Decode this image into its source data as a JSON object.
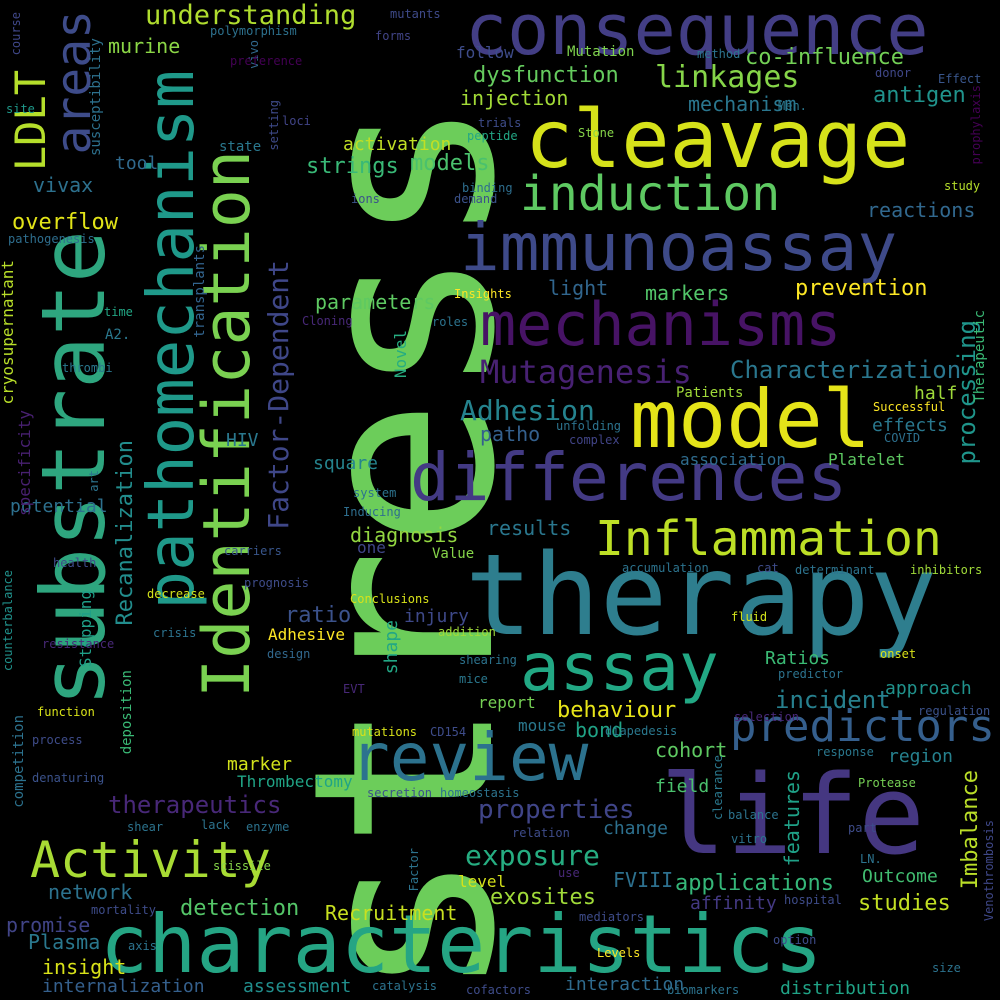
{
  "words": [
    {
      "t": "stress",
      "c": "#6ccd5a"
    },
    {
      "t": "therapy",
      "c": "#2e7e8e"
    },
    {
      "t": "characteristics",
      "c": "#25a584"
    },
    {
      "t": "life",
      "c": "#453781"
    },
    {
      "t": "consequence",
      "c": "#433e85"
    },
    {
      "t": "cleavage",
      "c": "#d6e21a"
    },
    {
      "t": "substrate",
      "c": "#2ea67f"
    },
    {
      "t": "pathomechanism",
      "c": "#1f998a"
    },
    {
      "t": "Identification",
      "c": "#7ad151"
    },
    {
      "t": "immunoassay",
      "c": "#3e4a89"
    },
    {
      "t": "mechanisms",
      "c": "#471365"
    },
    {
      "t": "model",
      "c": "#e5e419"
    },
    {
      "t": "differences",
      "c": "#433a84"
    },
    {
      "t": "review",
      "c": "#2c728e"
    },
    {
      "t": "assay",
      "c": "#22a884"
    },
    {
      "t": "induction",
      "c": "#5ec962"
    },
    {
      "t": "Inflammation",
      "c": "#bddf26"
    },
    {
      "t": "Activity",
      "c": "#a8db34"
    },
    {
      "t": "areas",
      "c": "#3e4c8a"
    },
    {
      "t": "predictors",
      "c": "#355f8d"
    },
    {
      "t": "LDLT",
      "c": "#b5de2b"
    },
    {
      "t": "Factor-Dependent",
      "c": "#3f4788"
    },
    {
      "t": "Mutagenesis",
      "c": "#482173"
    },
    {
      "t": "linkages",
      "c": "#86d549"
    },
    {
      "t": "understanding",
      "c": "#b0dd2f"
    },
    {
      "t": "processing",
      "c": "#1f958b"
    },
    {
      "t": "Recanalization",
      "c": "#228d8d"
    },
    {
      "t": "Imbalance",
      "c": "#bade28"
    },
    {
      "t": "features",
      "c": "#1fa187"
    },
    {
      "t": "Adhesion",
      "c": "#25838e"
    },
    {
      "t": "Characterization",
      "c": "#2a778e"
    },
    {
      "t": "exposure",
      "c": "#26ad81"
    },
    {
      "t": "properties",
      "c": "#404588"
    },
    {
      "t": "therapeutics",
      "c": "#482878"
    },
    {
      "t": "applications",
      "c": "#35b779"
    },
    {
      "t": "incident",
      "c": "#27808e"
    },
    {
      "t": "detection",
      "c": "#54c568"
    },
    {
      "t": "Recruitment",
      "c": "#c8e020"
    },
    {
      "t": "studies",
      "c": "#c2df23"
    },
    {
      "t": "exosites",
      "c": "#a0da39"
    },
    {
      "t": "prevention",
      "c": "#fde725"
    },
    {
      "t": "behaviour",
      "c": "#e7e419"
    },
    {
      "t": "dysfunction",
      "c": "#65cb5e"
    },
    {
      "t": "co-influence",
      "c": "#73d056"
    },
    {
      "t": "injection",
      "c": "#a2da37"
    },
    {
      "t": "mechanism",
      "c": "#2a768e"
    },
    {
      "t": "antigen",
      "c": "#20938c"
    },
    {
      "t": "murine",
      "c": "#8bd646"
    },
    {
      "t": "activation",
      "c": "#c0df25"
    },
    {
      "t": "strings",
      "c": "#39b977"
    },
    {
      "t": "models",
      "c": "#4ac16d"
    },
    {
      "t": "reactions",
      "c": "#31688e"
    },
    {
      "t": "overflow",
      "c": "#e2e418"
    },
    {
      "t": "vivax",
      "c": "#2d718e"
    },
    {
      "t": "tool",
      "c": "#306a8e"
    },
    {
      "t": "light",
      "c": "#31668e"
    },
    {
      "t": "markers",
      "c": "#52c569"
    },
    {
      "t": "parameters",
      "c": "#5ec962"
    },
    {
      "t": "ratio",
      "c": "#3b528b"
    },
    {
      "t": "half",
      "c": "#9fda3a"
    },
    {
      "t": "effects",
      "c": "#2a788e"
    },
    {
      "t": "patho",
      "c": "#34608d"
    },
    {
      "t": "Platelet",
      "c": "#5ec962"
    },
    {
      "t": "association",
      "c": "#2f6c8e"
    },
    {
      "t": "square",
      "c": "#25848e"
    },
    {
      "t": "diagnosis",
      "c": "#93d741"
    },
    {
      "t": "results",
      "c": "#2a778e"
    },
    {
      "t": "Ratios",
      "c": "#3bbb75"
    },
    {
      "t": "approach",
      "c": "#20928c"
    },
    {
      "t": "report",
      "c": "#75d054"
    },
    {
      "t": "bond",
      "c": "#20a386"
    },
    {
      "t": "cohort",
      "c": "#5ec962"
    },
    {
      "t": "marker",
      "c": "#d2e21b"
    },
    {
      "t": "Thrombectomy",
      "c": "#20a486"
    },
    {
      "t": "region",
      "c": "#26818e"
    },
    {
      "t": "field",
      "c": "#4ac16d"
    },
    {
      "t": "change",
      "c": "#2d708e"
    },
    {
      "t": "network",
      "c": "#2c728e"
    },
    {
      "t": "FVIII",
      "c": "#2d708e"
    },
    {
      "t": "Outcome",
      "c": "#42be71"
    },
    {
      "t": "affinity",
      "c": "#443983"
    },
    {
      "t": "promise",
      "c": "#414487"
    },
    {
      "t": "Plasma",
      "c": "#2a788e"
    },
    {
      "t": "insight",
      "c": "#d8e219"
    },
    {
      "t": "internalization",
      "c": "#35608d"
    },
    {
      "t": "assessment",
      "c": "#218f8d"
    },
    {
      "t": "interaction",
      "c": "#2f6b8e"
    },
    {
      "t": "distribution",
      "c": "#20a386"
    },
    {
      "t": "level",
      "c": "#d5e21a"
    },
    {
      "t": "injury",
      "c": "#3e4989"
    },
    {
      "t": "Adhesive",
      "c": "#fde725"
    },
    {
      "t": "shape",
      "c": "#22a785"
    },
    {
      "t": "mouse",
      "c": "#2a788e"
    },
    {
      "t": "one",
      "c": "#404688"
    },
    {
      "t": "potential",
      "c": "#2d708e"
    },
    {
      "t": "HIV",
      "c": "#2a788e"
    },
    {
      "t": "cryosupernatant",
      "c": "#b8de29"
    },
    {
      "t": "specificity",
      "c": "#482071"
    },
    {
      "t": "susceptibility",
      "c": "#2d718e"
    },
    {
      "t": "pathogenesis",
      "c": "#2e6e8e"
    },
    {
      "t": "transplants",
      "c": "#32648e"
    },
    {
      "t": "Novel",
      "c": "#26ad81"
    },
    {
      "t": "Therapeutic",
      "c": "#3aba76"
    },
    {
      "t": "competition",
      "c": "#2c728e"
    },
    {
      "t": "deposition",
      "c": "#3aba76"
    },
    {
      "t": "Stepping",
      "c": "#1f9f88"
    },
    {
      "t": "counterbalance",
      "c": "#20928c"
    },
    {
      "t": "Venothrombosis",
      "c": "#3f4889"
    },
    {
      "t": "mutants",
      "c": "#3e4a89"
    },
    {
      "t": "course",
      "c": "#3f4788"
    },
    {
      "t": "polymorphism",
      "c": "#2d718e"
    },
    {
      "t": "forms",
      "c": "#414487"
    },
    {
      "t": "follow",
      "c": "#3e4c8a"
    },
    {
      "t": "Mutation",
      "c": "#7fd34e"
    },
    {
      "t": "method",
      "c": "#2c738e"
    },
    {
      "t": "donor",
      "c": "#3f4788"
    },
    {
      "t": "Effect",
      "c": "#39568c"
    },
    {
      "t": "prophylaxis",
      "c": "#440154"
    },
    {
      "t": "Men.",
      "c": "#2a788e"
    },
    {
      "t": "site",
      "c": "#1f998a"
    },
    {
      "t": "vivo",
      "c": "#31688e"
    },
    {
      "t": "preference",
      "c": "#440154"
    },
    {
      "t": "setting",
      "c": "#3e4a89"
    },
    {
      "t": "loci",
      "c": "#414487"
    },
    {
      "t": "trials",
      "c": "#3e4c8a"
    },
    {
      "t": "peptide",
      "c": "#22a785"
    },
    {
      "t": "Stone",
      "c": "#86d549"
    },
    {
      "t": "state",
      "c": "#2a788e"
    },
    {
      "t": "study",
      "c": "#b5de2b"
    },
    {
      "t": "binding",
      "c": "#2e6e8e"
    },
    {
      "t": "demand",
      "c": "#3b528b"
    },
    {
      "t": "ions",
      "c": "#3b528b"
    },
    {
      "t": "Insights",
      "c": "#fde725"
    },
    {
      "t": "roles",
      "c": "#2c738e"
    },
    {
      "t": "Cloning",
      "c": "#482878"
    },
    {
      "t": "time",
      "c": "#22a785"
    },
    {
      "t": "A2.",
      "c": "#2a788e"
    },
    {
      "t": "thrombi",
      "c": "#2a788e"
    },
    {
      "t": "Patients",
      "c": "#a0da39"
    },
    {
      "t": "Successful",
      "c": "#fde725"
    },
    {
      "t": "unfolding",
      "c": "#2c738e"
    },
    {
      "t": "complex",
      "c": "#414487"
    },
    {
      "t": "COVID",
      "c": "#2d708e"
    },
    {
      "t": "art",
      "c": "#2c738e"
    },
    {
      "t": "system",
      "c": "#2c738e"
    },
    {
      "t": "Inducing",
      "c": "#2e6e8e"
    },
    {
      "t": "carriers",
      "c": "#39568c"
    },
    {
      "t": "Value",
      "c": "#86d549"
    },
    {
      "t": "health",
      "c": "#3e4c8a"
    },
    {
      "t": "accumulation",
      "c": "#2c738e"
    },
    {
      "t": "cat",
      "c": "#3e4c8a"
    },
    {
      "t": "determinant",
      "c": "#2c738e"
    },
    {
      "t": "inhibitors",
      "c": "#a0da39"
    },
    {
      "t": "prognosis",
      "c": "#3e4c8a"
    },
    {
      "t": "decrease",
      "c": "#d2e21b"
    },
    {
      "t": "Conclusions",
      "c": "#d8e219"
    },
    {
      "t": "resistance",
      "c": "#482878"
    },
    {
      "t": "crisis",
      "c": "#2c738e"
    },
    {
      "t": "addition",
      "c": "#a0da39"
    },
    {
      "t": "fluid",
      "c": "#d2e21b"
    },
    {
      "t": "design",
      "c": "#31688e"
    },
    {
      "t": "shearing",
      "c": "#2c738e"
    },
    {
      "t": "onset",
      "c": "#d8e219"
    },
    {
      "t": "mice",
      "c": "#2a788e"
    },
    {
      "t": "predictor",
      "c": "#2c738e"
    },
    {
      "t": "EVT",
      "c": "#482878"
    },
    {
      "t": "function",
      "c": "#d8e219"
    },
    {
      "t": "process",
      "c": "#3e4c8a"
    },
    {
      "t": "mutations",
      "c": "#d8e219"
    },
    {
      "t": "CD154",
      "c": "#3e4c8a"
    },
    {
      "t": "diapedesis",
      "c": "#2a788e"
    },
    {
      "t": "selection",
      "c": "#482878"
    },
    {
      "t": "regulation",
      "c": "#3b528b"
    },
    {
      "t": "clearance",
      "c": "#2a788e"
    },
    {
      "t": "response",
      "c": "#2a788e"
    },
    {
      "t": "denaturing",
      "c": "#3b528b"
    },
    {
      "t": "secretion",
      "c": "#3b528b"
    },
    {
      "t": "homeostasis",
      "c": "#2c738e"
    },
    {
      "t": "Protease",
      "c": "#75d054"
    },
    {
      "t": "shear",
      "c": "#2c738e"
    },
    {
      "t": "lack",
      "c": "#2c738e"
    },
    {
      "t": "enzyme",
      "c": "#2c738e"
    },
    {
      "t": "relation",
      "c": "#3e4c8a"
    },
    {
      "t": "balance",
      "c": "#2c738e"
    },
    {
      "t": "vitro",
      "c": "#2c738e"
    },
    {
      "t": "part",
      "c": "#3e4c8a"
    },
    {
      "t": "LN.",
      "c": "#2c738e"
    },
    {
      "t": "Factor",
      "c": "#2c738e"
    },
    {
      "t": "use",
      "c": "#482878"
    },
    {
      "t": "scissile",
      "c": "#86d549"
    },
    {
      "t": "mortality",
      "c": "#3e4c8a"
    },
    {
      "t": "mediators",
      "c": "#3e4c8a"
    },
    {
      "t": "hospital",
      "c": "#3e4c8a"
    },
    {
      "t": "axis",
      "c": "#2c738e"
    },
    {
      "t": "option",
      "c": "#3e4c8a"
    },
    {
      "t": "Levels",
      "c": "#fde725"
    },
    {
      "t": "size",
      "c": "#2c738e"
    },
    {
      "t": "catalysis",
      "c": "#2c738e"
    },
    {
      "t": "cofactors",
      "c": "#3e4c8a"
    },
    {
      "t": "biomarkers",
      "c": "#2c738e"
    }
  ]
}
